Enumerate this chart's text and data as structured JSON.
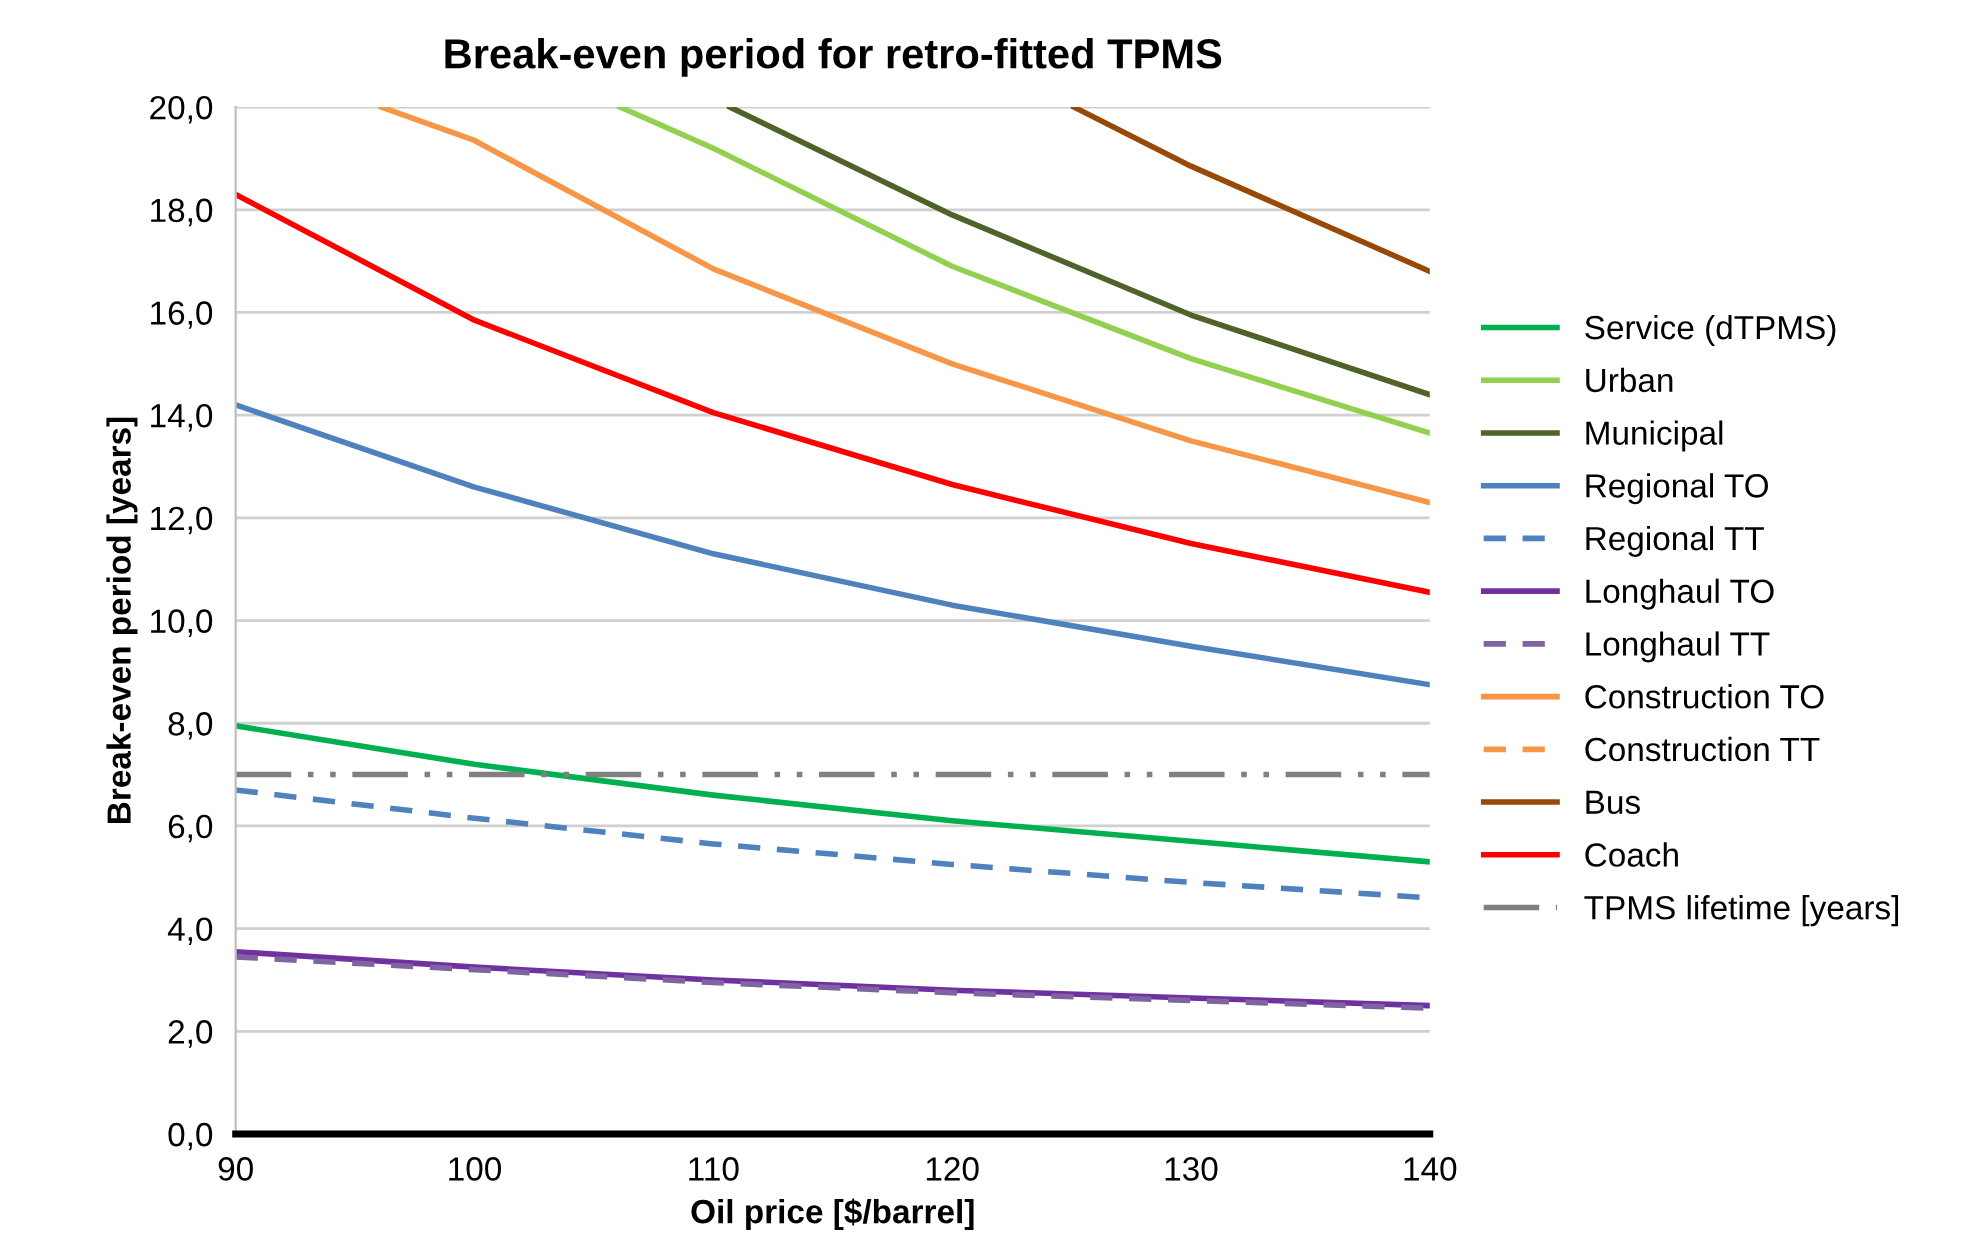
{
  "chart_data": {
    "type": "line",
    "title": "Break-even period for retro-fitted TPMS",
    "xlabel": "Oil price [$/barrel]",
    "ylabel": "Break-even period [years]",
    "x": [
      90,
      100,
      110,
      120,
      130,
      140
    ],
    "xlim": [
      90,
      140
    ],
    "xticks": [
      90,
      100,
      110,
      120,
      130,
      140
    ],
    "ylim": [
      0,
      20
    ],
    "yticks": [
      {
        "value": 0,
        "label": "0,0"
      },
      {
        "value": 2,
        "label": "2,0"
      },
      {
        "value": 4,
        "label": "4,0"
      },
      {
        "value": 6,
        "label": "6,0"
      },
      {
        "value": 8,
        "label": "8,0"
      },
      {
        "value": 10,
        "label": "10,0"
      },
      {
        "value": 12,
        "label": "12,0"
      },
      {
        "value": 14,
        "label": "14,0"
      },
      {
        "value": 16,
        "label": "16,0"
      },
      {
        "value": 18,
        "label": "18,0"
      },
      {
        "value": 20,
        "label": "20,0"
      }
    ],
    "grid": "y",
    "legend": "right",
    "marker": "none",
    "series": [
      {
        "name": "Service (dTPMS)",
        "color": "#00b050",
        "values": [
          7.95,
          7.2,
          6.6,
          6.1,
          5.7,
          5.3
        ]
      },
      {
        "name": "Urban",
        "color": "#92d050",
        "x": [
          106.1,
          110,
          120,
          130,
          140
        ],
        "values": [
          20,
          19.2,
          16.9,
          15.1,
          13.65
        ]
      },
      {
        "name": "Municipal",
        "color": "#4f6228",
        "x": [
          110.7,
          120,
          130,
          140
        ],
        "values": [
          20,
          17.9,
          15.95,
          14.4
        ]
      },
      {
        "name": "Regional TO",
        "color": "#4f81bd",
        "values": [
          14.2,
          12.6,
          11.3,
          10.3,
          9.5,
          8.75
        ]
      },
      {
        "name": "Regional TT",
        "color": "#4f81bd",
        "line_style": "dashed",
        "values": [
          6.7,
          6.15,
          5.65,
          5.25,
          4.9,
          4.6
        ]
      },
      {
        "name": "Longhaul TO",
        "color": "#7030a0",
        "values": [
          3.55,
          3.25,
          3.0,
          2.8,
          2.65,
          2.5
        ]
      },
      {
        "name": "Longhaul TT",
        "color": "#8064a2",
        "line_style": "dashed",
        "values": [
          3.45,
          3.2,
          2.95,
          2.75,
          2.6,
          2.45
        ]
      },
      {
        "name": "Construction TO",
        "color": "#f79646",
        "x": [
          96.1,
          100,
          110,
          120,
          130,
          140
        ],
        "values": [
          20,
          19.35,
          16.85,
          15.0,
          13.5,
          12.3
        ]
      },
      {
        "name": "Construction TT",
        "color": "#f79646",
        "line_style": "dashed",
        "values": [
          null,
          null,
          null,
          null,
          null,
          null
        ]
      },
      {
        "name": "Bus",
        "color": "#984807",
        "x": [
          125.1,
          130,
          140
        ],
        "values": [
          20,
          18.85,
          16.8
        ]
      },
      {
        "name": "Coach",
        "color": "#ff0000",
        "values": [
          18.3,
          15.85,
          14.05,
          12.65,
          11.5,
          10.55
        ]
      },
      {
        "name": "TPMS lifetime [years]",
        "color": "#808080",
        "line_style": "dashdot",
        "values": [
          7,
          7,
          7,
          7,
          7,
          7
        ]
      }
    ]
  }
}
